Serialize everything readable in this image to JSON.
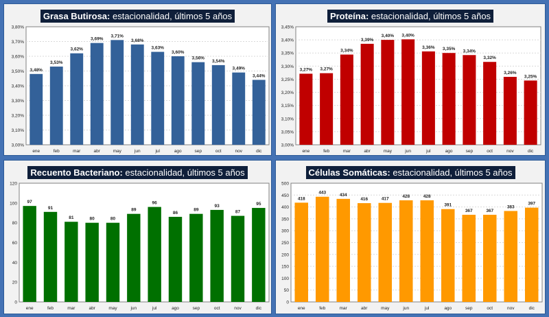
{
  "chart_data": [
    {
      "type": "bar",
      "title_bold": "Grasa Butirosa:",
      "title_rest": " estacionalidad, últimos 5 años",
      "categories": [
        "ene",
        "feb",
        "mar",
        "abr",
        "may",
        "jun",
        "jul",
        "ago",
        "sep",
        "oct",
        "nov",
        "dic"
      ],
      "values": [
        3.48,
        3.53,
        3.62,
        3.69,
        3.71,
        3.68,
        3.63,
        3.6,
        3.56,
        3.54,
        3.49,
        3.44
      ],
      "value_labels": [
        "3,48%",
        "3,53%",
        "3,62%",
        "3,69%",
        "3,71%",
        "3,68%",
        "3,63%",
        "3,60%",
        "3,56%",
        "3,54%",
        "3,49%",
        "3,44%"
      ],
      "ylim": [
        3.0,
        3.8
      ],
      "yticks": [
        3.0,
        3.1,
        3.2,
        3.3,
        3.4,
        3.5,
        3.6,
        3.7,
        3.8
      ],
      "ytick_labels": [
        "3,00%",
        "3,10%",
        "3,20%",
        "3,30%",
        "3,40%",
        "3,50%",
        "3,60%",
        "3,70%",
        "3,80%"
      ],
      "color": "#336199",
      "grid": true
    },
    {
      "type": "bar",
      "title_bold": "Proteína:",
      "title_rest": " estacionalidad, últimos 5 años",
      "categories": [
        "ene",
        "feb",
        "mar",
        "abr",
        "may",
        "jun",
        "jul",
        "ago",
        "sep",
        "oct",
        "nov",
        "dic"
      ],
      "values": [
        3.271,
        3.273,
        3.344,
        3.385,
        3.4,
        3.402,
        3.356,
        3.35,
        3.342,
        3.316,
        3.259,
        3.245
      ],
      "value_labels": [
        "3,27%",
        "3,27%",
        "3,34%",
        "3,39%",
        "3,40%",
        "3,40%",
        "3,36%",
        "3,35%",
        "3,34%",
        "3,32%",
        "3,26%",
        "3,25%"
      ],
      "ylim": [
        3.0,
        3.45
      ],
      "yticks": [
        3.0,
        3.05,
        3.1,
        3.15,
        3.2,
        3.25,
        3.3,
        3.35,
        3.4,
        3.45
      ],
      "ytick_labels": [
        "3,00%",
        "3,05%",
        "3,10%",
        "3,15%",
        "3,20%",
        "3,25%",
        "3,30%",
        "3,35%",
        "3,40%",
        "3,45%"
      ],
      "color": "#c00000",
      "grid": true
    },
    {
      "type": "bar",
      "title_bold": "Recuento Bacteriano:",
      "title_rest": " estacionalidad, últimos 5 años",
      "categories": [
        "ene",
        "feb",
        "mar",
        "abr",
        "may",
        "jun",
        "jul",
        "ago",
        "sep",
        "oct",
        "nov",
        "dic"
      ],
      "values": [
        97,
        91,
        81,
        80,
        80,
        89,
        96,
        86,
        89,
        93,
        87,
        95
      ],
      "value_labels": [
        "97",
        "91",
        "81",
        "80",
        "80",
        "89",
        "96",
        "86",
        "89",
        "93",
        "87",
        "95"
      ],
      "ylim": [
        0,
        120
      ],
      "yticks": [
        0,
        20,
        40,
        60,
        80,
        100,
        120
      ],
      "ytick_labels": [
        "0",
        "20",
        "40",
        "60",
        "80",
        "100",
        "120"
      ],
      "color": "#007000",
      "grid": false
    },
    {
      "type": "bar",
      "title_bold": "Células Somáticas:",
      "title_rest": " estacionalidad, últimos 5 años",
      "categories": [
        "ene",
        "feb",
        "mar",
        "abr",
        "may",
        "jun",
        "jul",
        "ago",
        "sep",
        "oct",
        "nov",
        "dic"
      ],
      "values": [
        418,
        443,
        434,
        416,
        417,
        428,
        428,
        391,
        367,
        367,
        383,
        397
      ],
      "value_labels": [
        "418",
        "443",
        "434",
        "416",
        "417",
        "428",
        "428",
        "391",
        "367",
        "367",
        "383",
        "397"
      ],
      "ylim": [
        0,
        500
      ],
      "yticks": [
        0,
        50,
        100,
        150,
        200,
        250,
        300,
        350,
        400,
        450,
        500
      ],
      "ytick_labels": [
        "0",
        "50",
        "100",
        "150",
        "200",
        "250",
        "300",
        "350",
        "400",
        "450",
        "500"
      ],
      "color": "#ff9900",
      "grid": true
    }
  ]
}
